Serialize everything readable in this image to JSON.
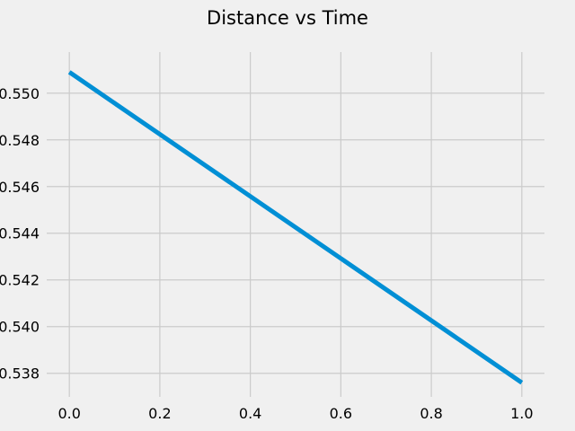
{
  "chart_data": {
    "type": "line",
    "title": "Distance vs Time",
    "xlabel": "",
    "ylabel": "",
    "grid": true,
    "xlim": [
      -0.05,
      1.05
    ],
    "ylim": [
      0.53699,
      0.55176
    ],
    "x_ticks": [
      0.0,
      0.2,
      0.4,
      0.6,
      0.8,
      1.0
    ],
    "x_tick_labels": [
      "0.0",
      "0.2",
      "0.4",
      "0.6",
      "0.8",
      "1.0"
    ],
    "y_ticks": [
      0.538,
      0.54,
      0.542,
      0.544,
      0.546,
      0.548,
      0.55
    ],
    "y_tick_labels": [
      "0.538",
      "0.540",
      "0.542",
      "0.544",
      "0.546",
      "0.548",
      "0.550"
    ],
    "series": [
      {
        "color": "#008fd5",
        "x": [
          0.0,
          1.0
        ],
        "y": [
          0.5509,
          0.5376
        ]
      }
    ]
  }
}
